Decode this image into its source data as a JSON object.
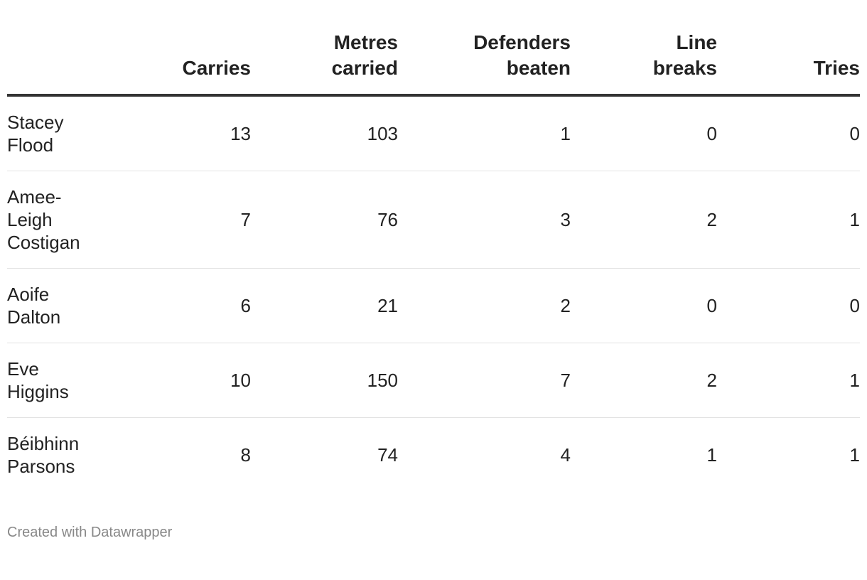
{
  "chart_data": {
    "type": "table",
    "columns": [
      {
        "key": "name",
        "label_lines": [
          ""
        ]
      },
      {
        "key": "carries",
        "label_lines": [
          "Carries"
        ]
      },
      {
        "key": "metres",
        "label_lines": [
          "Metres",
          "carried"
        ]
      },
      {
        "key": "defenders",
        "label_lines": [
          "Defenders",
          "beaten"
        ]
      },
      {
        "key": "linebreaks",
        "label_lines": [
          "Line",
          "breaks"
        ]
      },
      {
        "key": "tries",
        "label_lines": [
          "Tries"
        ]
      }
    ],
    "rows": [
      {
        "name_lines": [
          "Stacey",
          "Flood"
        ],
        "carries": "13",
        "metres": "103",
        "defenders": "1",
        "linebreaks": "0",
        "tries": "0"
      },
      {
        "name_lines": [
          "Amee-",
          "Leigh",
          "Costigan"
        ],
        "carries": "7",
        "metres": "76",
        "defenders": "3",
        "linebreaks": "2",
        "tries": "1"
      },
      {
        "name_lines": [
          "Aoife",
          "Dalton"
        ],
        "carries": "6",
        "metres": "21",
        "defenders": "2",
        "linebreaks": "0",
        "tries": "0"
      },
      {
        "name_lines": [
          "Eve",
          "Higgins"
        ],
        "carries": "10",
        "metres": "150",
        "defenders": "7",
        "linebreaks": "2",
        "tries": "1"
      },
      {
        "name_lines": [
          "Béibhinn",
          "Parsons"
        ],
        "carries": "8",
        "metres": "74",
        "defenders": "4",
        "linebreaks": "1",
        "tries": "1"
      }
    ]
  },
  "footer": {
    "credit": "Created with Datawrapper"
  }
}
